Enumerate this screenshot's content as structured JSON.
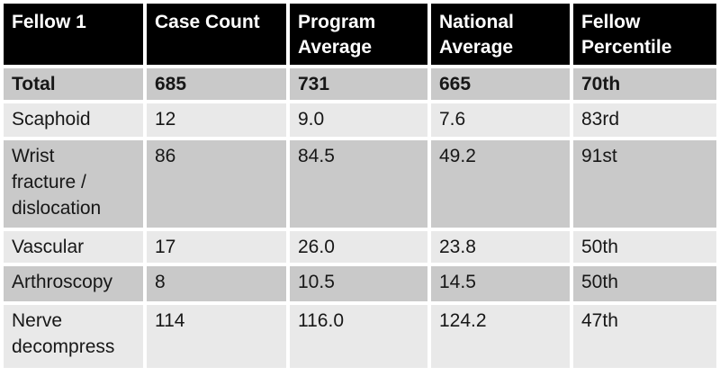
{
  "table": {
    "header": [
      "Fellow 1",
      "Case Count",
      "Program Average",
      "National Average",
      "Fellow Percentile"
    ],
    "rows": [
      [
        "Total",
        "685",
        "731",
        "665",
        "70th"
      ],
      [
        "Scaphoid",
        "12",
        "9.0",
        "7.6",
        "83rd"
      ],
      [
        "Wrist fracture / dislocation",
        "86",
        "84.5",
        "49.2",
        "91st"
      ],
      [
        "Vascular",
        "17",
        "26.0",
        "23.8",
        "50th"
      ],
      [
        "Arthroscopy",
        "8",
        "10.5",
        "14.5",
        "50th"
      ],
      [
        "Nerve decompress",
        "114",
        "116.0",
        "124.2",
        "47th"
      ]
    ]
  },
  "colors": {
    "header_bg": "#000000",
    "header_text": "#ffffff",
    "row_dark": "#c9c9c9",
    "row_light": "#e9e9e9",
    "body_text": "#171717",
    "separator": "#ffffff"
  }
}
